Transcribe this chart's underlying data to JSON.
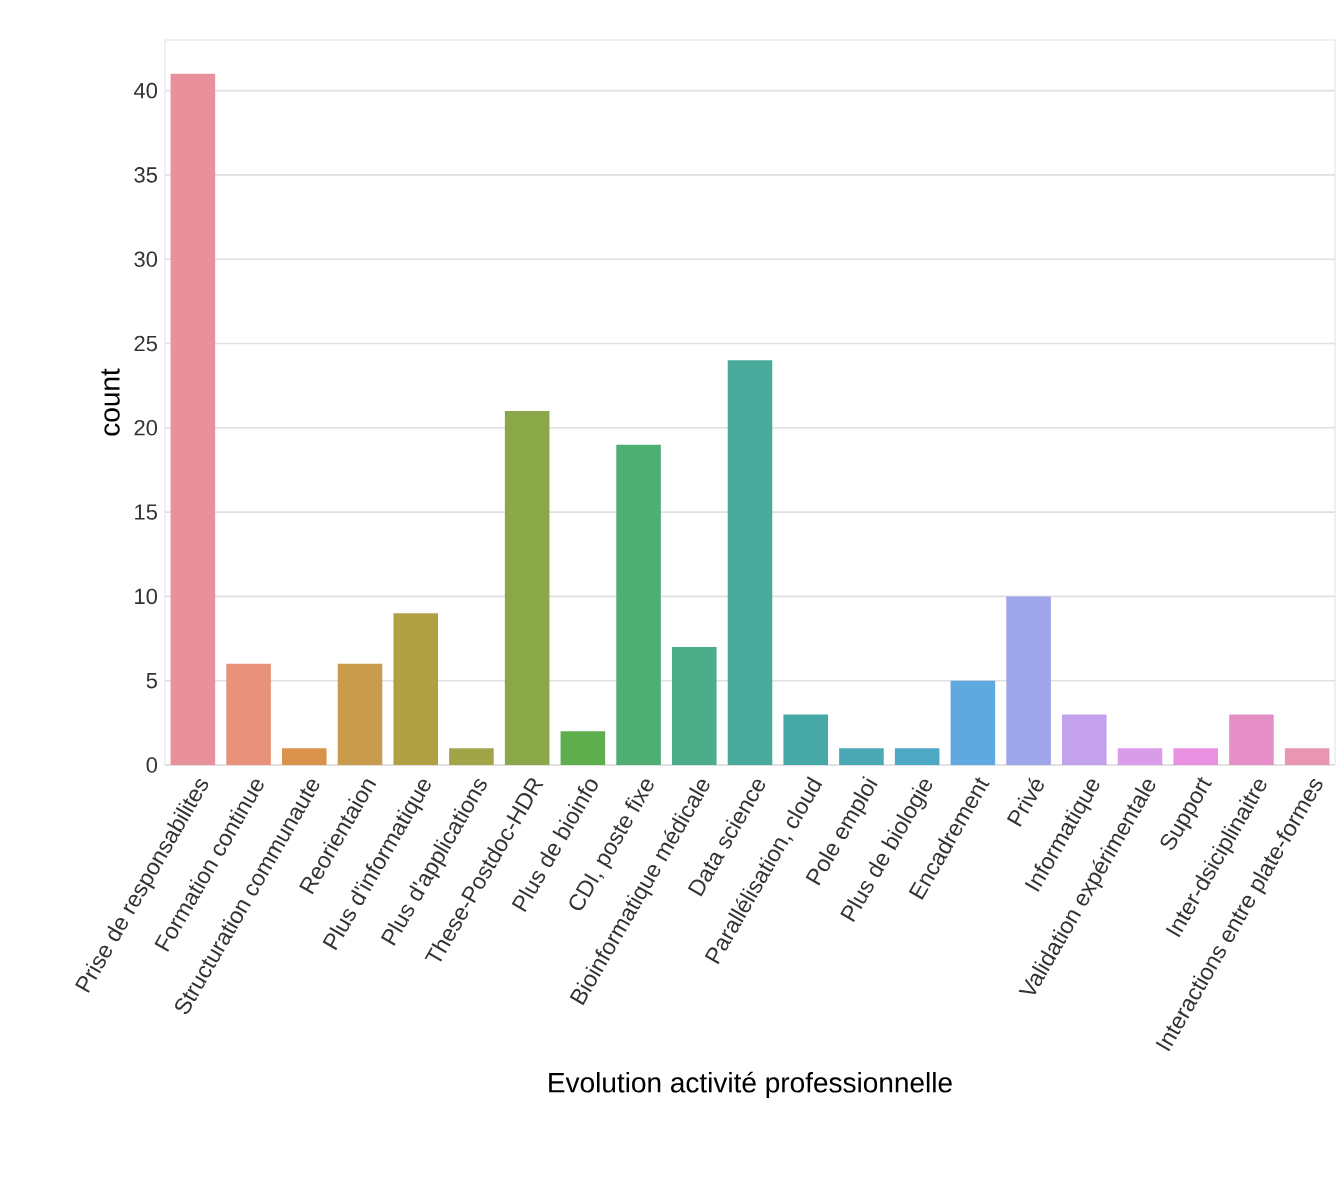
{
  "chart_data": {
    "type": "bar",
    "xlabel": "Evolution activité professionnelle",
    "ylabel": "count",
    "categories": [
      "Prise de responsabilites",
      "Formation continue",
      "Structuration communaute",
      "Reorientaion",
      "Plus d'informatique",
      "Plus d'applications",
      "These-Postdoc-HDR",
      "Plus de bioinfo",
      "CDI, poste fixe",
      "Bioinformatique médicale",
      "Data science",
      "Parallélisation, cloud",
      "Pole emploi",
      "Plus de biologie",
      "Encadrement",
      "Privé",
      "Informatique",
      "Validation expérimentale",
      "Support",
      "Inter-dsiciplinaitre",
      "Interactions entre plate-formes"
    ],
    "values": [
      41,
      6,
      1,
      6,
      9,
      1,
      21,
      2,
      19,
      7,
      24,
      3,
      1,
      1,
      5,
      10,
      3,
      1,
      1,
      3,
      1
    ],
    "colors": [
      "#e8919c",
      "#e8927c",
      "#d9934d",
      "#c89c4c",
      "#b0a043",
      "#a1a447",
      "#8aa848",
      "#5fae4d",
      "#4fae74",
      "#4bad8a",
      "#4aab9d",
      "#47a9a6",
      "#4aa9b5",
      "#4da8c3",
      "#60a8e0",
      "#9ea5e8",
      "#c3a1ec",
      "#d99ce9",
      "#e891e0",
      "#e58fc6",
      "#e896b1"
    ],
    "ylim": [
      0,
      43
    ],
    "yticks": [
      0,
      5,
      10,
      15,
      20,
      25,
      30,
      35,
      40
    ],
    "grid": "y"
  }
}
